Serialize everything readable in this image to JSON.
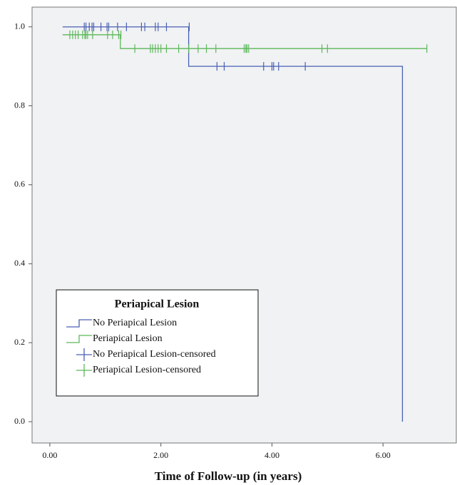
{
  "chart_data": {
    "type": "line",
    "xlabel": "Time of Follow-up (in years)",
    "legend_title": "Periapical Lesion",
    "legend": "lower-left",
    "xlim": [
      -0.32,
      7.32
    ],
    "ylim": [
      -0.054,
      1.05
    ],
    "xticks": [
      {
        "value": 0,
        "label": "0.00"
      },
      {
        "value": 2,
        "label": "2.00"
      },
      {
        "value": 4,
        "label": "4.00"
      },
      {
        "value": 6,
        "label": "6.00"
      }
    ],
    "yticks": [
      {
        "value": 0,
        "label": "0.0"
      },
      0.2,
      0.4,
      0.6,
      0.8,
      {
        "value": 1,
        "label": "1.0"
      }
    ],
    "series": [
      {
        "name": "No Periapical Lesion",
        "color": "#4a5fb4",
        "mode": "step",
        "x": [
          0.23,
          2.5,
          2.5,
          6.35,
          6.35
        ],
        "values": [
          1,
          1,
          0.9,
          0.9,
          0
        ]
      },
      {
        "name": "Periapical Lesion",
        "color": "#5cb85a",
        "mode": "step",
        "x": [
          0.23,
          1.27,
          1.27,
          6.79
        ],
        "values": [
          0.98,
          0.98,
          0.945,
          0.945
        ]
      },
      {
        "name": "No Periapical Lesion-censored",
        "color": "#4a5fb4",
        "mode": "markers",
        "x": [
          0.62,
          0.65,
          0.71,
          0.76,
          0.79,
          0.92,
          1.03,
          1.06,
          1.22,
          1.38,
          1.65,
          1.71,
          1.9,
          1.95,
          2.1,
          2.51,
          3.01,
          3.14,
          3.85,
          4.0,
          4.03,
          4.12,
          4.6
        ],
        "values": [
          1,
          1,
          1,
          1,
          1,
          1,
          1,
          1,
          1,
          1,
          1,
          1,
          1,
          1,
          1,
          1,
          0.9,
          0.9,
          0.9,
          0.9,
          0.9,
          0.9,
          0.9
        ]
      },
      {
        "name": "Periapical Lesion-censored",
        "color": "#5cb85a",
        "mode": "markers",
        "x": [
          0.36,
          0.41,
          0.46,
          0.51,
          0.59,
          0.63,
          0.65,
          0.68,
          0.77,
          1.04,
          1.13,
          1.24,
          1.28,
          1.53,
          1.81,
          1.85,
          1.9,
          1.95,
          2.0,
          2.1,
          2.32,
          2.5,
          2.67,
          2.82,
          2.99,
          3.5,
          3.53,
          3.55,
          3.58,
          4.9,
          5.0,
          6.79
        ],
        "values": [
          0.98,
          0.98,
          0.98,
          0.98,
          0.98,
          0.98,
          0.98,
          0.98,
          0.98,
          0.98,
          0.98,
          0.98,
          0.98,
          0.945,
          0.945,
          0.945,
          0.945,
          0.945,
          0.945,
          0.945,
          0.945,
          0.945,
          0.945,
          0.945,
          0.945,
          0.945,
          0.945,
          0.945,
          0.945,
          0.945,
          0.945,
          0.945
        ]
      }
    ]
  }
}
